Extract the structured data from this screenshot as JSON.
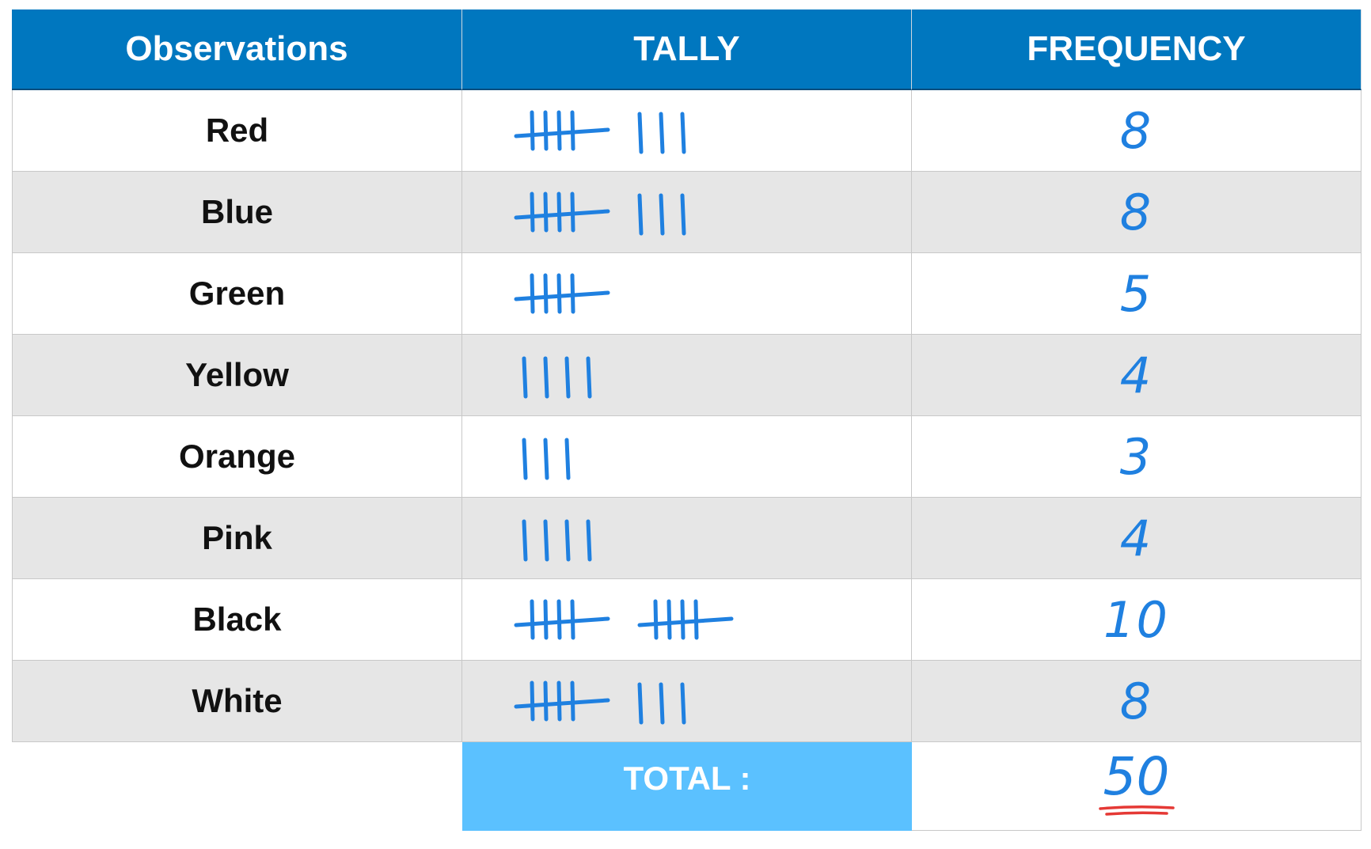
{
  "chart_data": {
    "type": "table",
    "columns": [
      "Observations",
      "TALLY",
      "FREQUENCY"
    ],
    "rows": [
      {
        "observation": "Red",
        "tally": 8,
        "frequency": "8"
      },
      {
        "observation": "Blue",
        "tally": 8,
        "frequency": "8"
      },
      {
        "observation": "Green",
        "tally": 5,
        "frequency": "5"
      },
      {
        "observation": "Yellow",
        "tally": 4,
        "frequency": "4"
      },
      {
        "observation": "Orange",
        "tally": 3,
        "frequency": "3"
      },
      {
        "observation": "Pink",
        "tally": 4,
        "frequency": "4"
      },
      {
        "observation": "Black",
        "tally": 10,
        "frequency": "10"
      },
      {
        "observation": "White",
        "tally": 8,
        "frequency": "8"
      }
    ],
    "total_label": "TOTAL :",
    "total_value": "50"
  },
  "colors": {
    "header_bg": "#0077bf",
    "total_label_bg": "#5bc1ff",
    "handwriting": "#1f80e0",
    "underline": "#e53935"
  }
}
